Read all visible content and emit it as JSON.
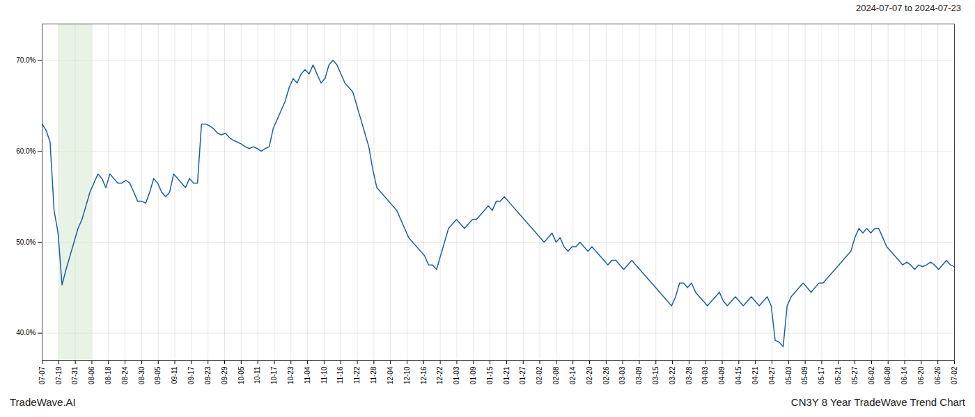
{
  "chart_data": {
    "type": "line",
    "title": "2024-07-07 to 2024-07-23",
    "annotations": [
      "TradeWave.AI",
      "CN3Y 8 Year TradeWave Trend Chart"
    ],
    "color": "#1a5fa8",
    "grid": true,
    "spans": [
      {
        "x": [
          1,
          3
        ],
        "color": "#d6ead2"
      }
    ],
    "xlim": [
      0,
      55
    ],
    "xticks": [
      {
        "value": 0,
        "label": "07-07"
      },
      {
        "value": 1,
        "label": "07-19"
      },
      {
        "value": 2,
        "label": "07-31"
      },
      {
        "value": 3,
        "label": "08-06"
      },
      {
        "value": 4,
        "label": "08-18"
      },
      {
        "value": 5,
        "label": "08-24"
      },
      {
        "value": 6,
        "label": "08-30"
      },
      {
        "value": 7,
        "label": "09-05"
      },
      {
        "value": 8,
        "label": "09-11"
      },
      {
        "value": 9,
        "label": "09-17"
      },
      {
        "value": 10,
        "label": "09-23"
      },
      {
        "value": 11,
        "label": "09-29"
      },
      {
        "value": 12,
        "label": "10-05"
      },
      {
        "value": 13,
        "label": "10-11"
      },
      {
        "value": 14,
        "label": "10-17"
      },
      {
        "value": 15,
        "label": "10-23"
      },
      {
        "value": 16,
        "label": "11-04"
      },
      {
        "value": 17,
        "label": "11-10"
      },
      {
        "value": 18,
        "label": "11-16"
      },
      {
        "value": 19,
        "label": "11-22"
      },
      {
        "value": 20,
        "label": "11-28"
      },
      {
        "value": 21,
        "label": "12-04"
      },
      {
        "value": 22,
        "label": "12-10"
      },
      {
        "value": 23,
        "label": "12-16"
      },
      {
        "value": 24,
        "label": "12-22"
      },
      {
        "value": 25,
        "label": "01-03"
      },
      {
        "value": 26,
        "label": "01-09"
      },
      {
        "value": 27,
        "label": "01-15"
      },
      {
        "value": 28,
        "label": "01-21"
      },
      {
        "value": 29,
        "label": "01-27"
      },
      {
        "value": 30,
        "label": "02-02"
      },
      {
        "value": 31,
        "label": "02-08"
      },
      {
        "value": 32,
        "label": "02-14"
      },
      {
        "value": 33,
        "label": "02-20"
      },
      {
        "value": 34,
        "label": "02-26"
      },
      {
        "value": 35,
        "label": "03-03"
      },
      {
        "value": 36,
        "label": "03-09"
      },
      {
        "value": 37,
        "label": "03-15"
      },
      {
        "value": 38,
        "label": "03-22"
      },
      {
        "value": 39,
        "label": "03-28"
      },
      {
        "value": 40,
        "label": "04-03"
      },
      {
        "value": 41,
        "label": "04-09"
      },
      {
        "value": 42,
        "label": "04-15"
      },
      {
        "value": 43,
        "label": "04-21"
      },
      {
        "value": 44,
        "label": "04-27"
      },
      {
        "value": 45,
        "label": "05-03"
      },
      {
        "value": 46,
        "label": "05-09"
      },
      {
        "value": 47,
        "label": "05-17"
      },
      {
        "value": 48,
        "label": "05-21"
      },
      {
        "value": 49,
        "label": "05-27"
      },
      {
        "value": 50,
        "label": "06-02"
      },
      {
        "value": 51,
        "label": "06-08"
      },
      {
        "value": 52,
        "label": "06-14"
      },
      {
        "value": 53,
        "label": "06-20"
      },
      {
        "value": 54,
        "label": "06-26"
      },
      {
        "value": 55,
        "label": "07-02"
      }
    ],
    "ylim": [
      37.0,
      74.0
    ],
    "yticks": [
      {
        "value": 40.0,
        "label": "40.0%"
      },
      {
        "value": 50.0,
        "label": "50.0%"
      },
      {
        "value": 60.0,
        "label": "60.0%"
      },
      {
        "value": 70.0,
        "label": "70.0%"
      }
    ],
    "values": [
      63.0,
      62.3,
      61.0,
      53.5,
      51.0,
      45.3,
      47.0,
      48.5,
      50.0,
      51.5,
      52.5,
      54.0,
      55.5,
      56.5,
      57.5,
      57.0,
      56.0,
      57.5,
      57.0,
      56.5,
      56.5,
      56.8,
      56.5,
      55.5,
      54.5,
      54.5,
      54.3,
      55.5,
      57.0,
      56.5,
      55.5,
      55.0,
      55.5,
      57.5,
      57.0,
      56.5,
      56.0,
      57.0,
      56.5,
      56.5,
      63.0,
      63.0,
      62.8,
      62.5,
      62.0,
      61.8,
      62.0,
      61.5,
      61.2,
      61.0,
      60.8,
      60.5,
      60.3,
      60.5,
      60.3,
      60.0,
      60.3,
      60.5,
      62.5,
      63.5,
      64.5,
      65.5,
      67.0,
      68.0,
      67.5,
      68.5,
      69.0,
      68.5,
      69.5,
      68.5,
      67.5,
      68.0,
      69.5,
      70.0,
      69.5,
      68.5,
      67.5,
      67.0,
      66.5,
      65.0,
      63.5,
      62.0,
      60.5,
      58.0,
      56.0,
      55.5,
      55.0,
      54.5,
      54.0,
      53.5,
      52.5,
      51.5,
      50.5,
      50.0,
      49.5,
      49.0,
      48.5,
      47.5,
      47.5,
      47.0,
      48.5,
      50.0,
      51.5,
      52.0,
      52.5,
      52.0,
      51.5,
      52.0,
      52.5,
      52.5,
      53.0,
      53.5,
      54.0,
      53.5,
      54.5,
      54.5,
      55.0,
      54.5,
      54.0,
      53.5,
      53.0,
      52.5,
      52.0,
      51.5,
      51.0,
      50.5,
      50.0,
      50.5,
      51.0,
      50.0,
      50.5,
      49.5,
      49.0,
      49.5,
      49.5,
      50.0,
      49.5,
      49.0,
      49.5,
      49.0,
      48.5,
      48.0,
      47.5,
      48.0,
      48.0,
      47.5,
      47.0,
      47.5,
      48.0,
      47.5,
      47.0,
      46.5,
      46.0,
      45.5,
      45.0,
      44.5,
      44.0,
      43.5,
      43.0,
      44.0,
      45.5,
      45.5,
      45.0,
      45.5,
      44.5,
      44.0,
      43.5,
      43.0,
      43.5,
      44.0,
      44.5,
      43.5,
      43.0,
      43.5,
      44.0,
      43.5,
      43.0,
      43.5,
      44.0,
      43.5,
      43.0,
      43.5,
      44.0,
      43.0,
      39.2,
      39.0,
      38.5,
      43.0,
      44.0,
      44.5,
      45.0,
      45.5,
      45.0,
      44.5,
      45.0,
      45.5,
      45.5,
      46.0,
      46.5,
      47.0,
      47.5,
      48.0,
      48.5,
      49.0,
      50.5,
      51.5,
      51.0,
      51.5,
      51.0,
      51.5,
      51.5,
      50.5,
      49.5,
      49.0,
      48.5,
      48.0,
      47.5,
      47.8,
      47.5,
      47.0,
      47.5,
      47.3,
      47.5,
      47.8,
      47.5,
      47.0,
      47.5,
      48.0,
      47.5,
      47.3
    ]
  }
}
